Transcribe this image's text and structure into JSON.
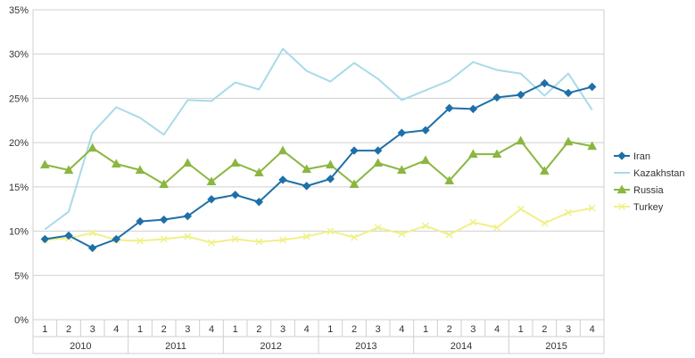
{
  "chart_data": {
    "type": "line",
    "title": "",
    "xlabel": "",
    "ylabel": "",
    "ylim": [
      0,
      35
    ],
    "y_ticks": [
      "0%",
      "5%",
      "10%",
      "15%",
      "20%",
      "25%",
      "30%",
      "35%"
    ],
    "x_quarters": [
      "1",
      "2",
      "3",
      "4",
      "1",
      "2",
      "3",
      "4",
      "1",
      "2",
      "3",
      "4",
      "1",
      "2",
      "3",
      "4",
      "1",
      "2",
      "3",
      "4",
      "1",
      "2",
      "3",
      "4"
    ],
    "years": [
      "2010",
      "2011",
      "2012",
      "2013",
      "2014",
      "2015"
    ],
    "grid": true,
    "legend_position": "right",
    "series": [
      {
        "name": "Iran",
        "color": "#1f6fa8",
        "marker": "diamond",
        "values": [
          9.1,
          9.5,
          8.1,
          9.1,
          11.1,
          11.3,
          11.7,
          13.6,
          14.1,
          13.3,
          15.8,
          15.1,
          15.9,
          19.1,
          19.1,
          21.1,
          21.4,
          23.9,
          23.8,
          25.1,
          25.4,
          26.7,
          25.6,
          26.3
        ]
      },
      {
        "name": "Kazakhstan",
        "color": "#a8dbe8",
        "marker": "none",
        "values": [
          10.2,
          12.2,
          21.1,
          24.0,
          22.8,
          20.9,
          24.8,
          24.7,
          26.8,
          26.0,
          30.6,
          28.1,
          26.9,
          29.0,
          27.2,
          24.8,
          25.9,
          27.0,
          29.1,
          28.2,
          27.8,
          25.3,
          27.8,
          23.7
        ]
      },
      {
        "name": "Russia",
        "color": "#8bb63f",
        "marker": "triangle",
        "values": [
          17.5,
          16.9,
          19.4,
          17.6,
          16.9,
          15.3,
          17.7,
          15.6,
          17.7,
          16.6,
          19.1,
          17.0,
          17.5,
          15.3,
          17.7,
          16.9,
          18.0,
          15.7,
          18.7,
          18.7,
          20.2,
          16.8,
          20.1,
          19.6
        ]
      },
      {
        "name": "Turkey",
        "color": "#f0f08a",
        "marker": "x",
        "values": [
          9.0,
          9.2,
          9.8,
          9.0,
          8.9,
          9.1,
          9.4,
          8.7,
          9.1,
          8.8,
          9.0,
          9.4,
          10.0,
          9.3,
          10.4,
          9.7,
          10.6,
          9.6,
          11.0,
          10.4,
          12.5,
          10.9,
          12.1,
          12.6
        ]
      }
    ]
  }
}
